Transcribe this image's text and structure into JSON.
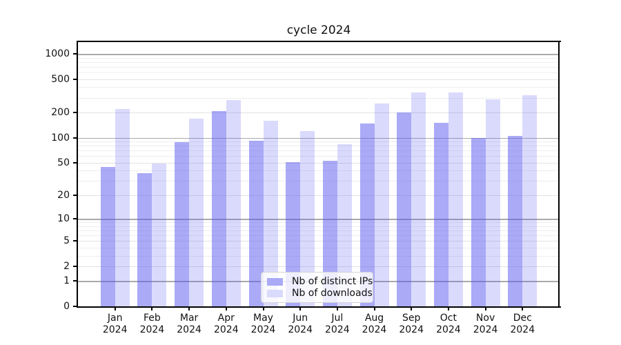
{
  "chart_data": {
    "type": "bar",
    "title": "cycle 2024",
    "x_year": "2024",
    "categories": [
      "Jan",
      "Feb",
      "Mar",
      "Apr",
      "May",
      "Jun",
      "Jul",
      "Aug",
      "Sep",
      "Oct",
      "Nov",
      "Dec"
    ],
    "series": [
      {
        "name": "Nb of distinct IPs",
        "color": "rgba(85,85,240,0.5)",
        "legend_color": "#aaaaf7",
        "values": [
          44,
          37,
          88,
          210,
          91,
          51,
          53,
          148,
          199,
          152,
          100,
          105
        ]
      },
      {
        "name": "Nb of downloads",
        "color": "rgba(85,85,240,0.22)",
        "legend_color": "#dadafc",
        "values": [
          221,
          49,
          170,
          283,
          161,
          121,
          84,
          256,
          345,
          348,
          287,
          323
        ]
      }
    ],
    "yaxis": {
      "scale": "log1p",
      "ticks": [
        0,
        1,
        2,
        5,
        10,
        20,
        50,
        100,
        200,
        500,
        1000
      ],
      "dark_ticks": [
        1,
        10,
        100,
        1000
      ],
      "light_ticks": [
        2,
        5,
        20,
        50,
        200,
        500
      ],
      "minor_ticks": [
        3,
        4,
        6,
        7,
        8,
        9,
        30,
        40,
        60,
        70,
        80,
        90,
        300,
        400,
        600,
        700,
        800,
        900
      ],
      "ymax": 1378,
      "ylim": [
        0,
        1378
      ]
    },
    "legend": {
      "position": "lower center",
      "entries": [
        "Nb of distinct IPs",
        "Nb of downloads"
      ]
    },
    "grid": true
  }
}
